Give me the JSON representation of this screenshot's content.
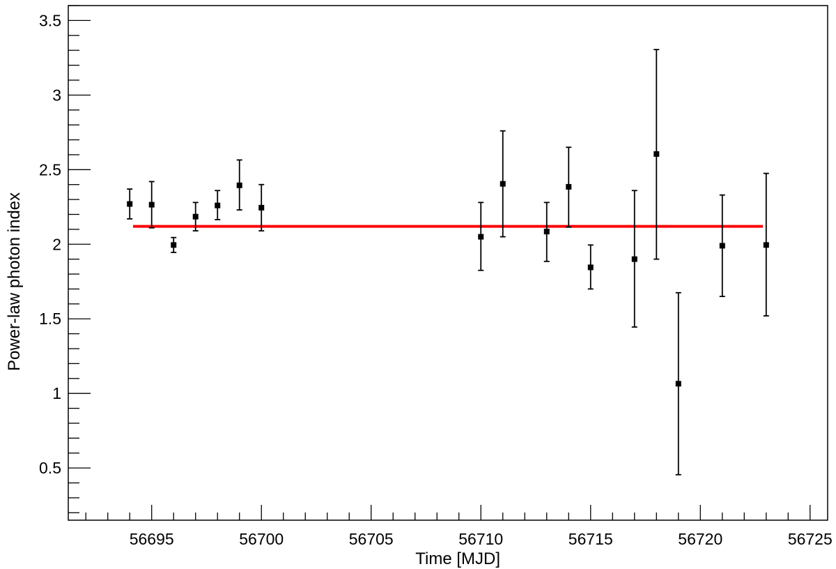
{
  "chart_data": {
    "type": "scatter",
    "title": "",
    "xlabel": "Time [MJD]",
    "ylabel": "Power-law photon index",
    "xlim": [
      56691.2,
      56725.8
    ],
    "ylim": [
      0.15,
      3.6
    ],
    "x_ticks": [
      56695,
      56700,
      56705,
      56710,
      56715,
      56720,
      56725
    ],
    "x_tick_labels": [
      "56695",
      "56700",
      "56705",
      "56710",
      "56715",
      "56720",
      "56725"
    ],
    "y_ticks": [
      0.5,
      1,
      1.5,
      2,
      2.5,
      3,
      3.5
    ],
    "y_tick_labels": [
      "0.5",
      "1",
      "1.5",
      "2",
      "2.5",
      "3",
      "3.5"
    ],
    "grid": false,
    "series": [
      {
        "points": [
          {
            "x": 56694,
            "y": 2.27,
            "err_low": 2.17,
            "err_high": 2.37
          },
          {
            "x": 56695,
            "y": 2.265,
            "err_low": 2.11,
            "err_high": 2.42
          },
          {
            "x": 56696,
            "y": 1.995,
            "err_low": 1.945,
            "err_high": 2.045
          },
          {
            "x": 56697,
            "y": 2.185,
            "err_low": 2.09,
            "err_high": 2.28
          },
          {
            "x": 56698,
            "y": 2.26,
            "err_low": 2.165,
            "err_high": 2.36
          },
          {
            "x": 56699,
            "y": 2.395,
            "err_low": 2.23,
            "err_high": 2.565
          },
          {
            "x": 56700,
            "y": 2.245,
            "err_low": 2.09,
            "err_high": 2.4
          },
          {
            "x": 56710,
            "y": 2.05,
            "err_low": 1.825,
            "err_high": 2.28
          },
          {
            "x": 56711,
            "y": 2.405,
            "err_low": 2.05,
            "err_high": 2.76
          },
          {
            "x": 56713,
            "y": 2.085,
            "err_low": 1.885,
            "err_high": 2.28
          },
          {
            "x": 56714,
            "y": 2.385,
            "err_low": 2.115,
            "err_high": 2.65
          },
          {
            "x": 56715,
            "y": 1.845,
            "err_low": 1.7,
            "err_high": 1.995
          },
          {
            "x": 56717,
            "y": 1.9,
            "err_low": 1.445,
            "err_high": 2.36
          },
          {
            "x": 56718,
            "y": 2.605,
            "err_low": 1.9,
            "err_high": 3.305
          },
          {
            "x": 56719,
            "y": 1.065,
            "err_low": 0.455,
            "err_high": 1.675
          },
          {
            "x": 56721,
            "y": 1.99,
            "err_low": 1.65,
            "err_high": 2.33
          },
          {
            "x": 56723,
            "y": 1.995,
            "err_low": 1.52,
            "err_high": 2.475
          }
        ]
      }
    ],
    "fit_line": {
      "x_start": 56694.15,
      "x_end": 56722.85,
      "y": 2.12,
      "color": "#ff0000"
    },
    "marker_color": "#000000"
  }
}
